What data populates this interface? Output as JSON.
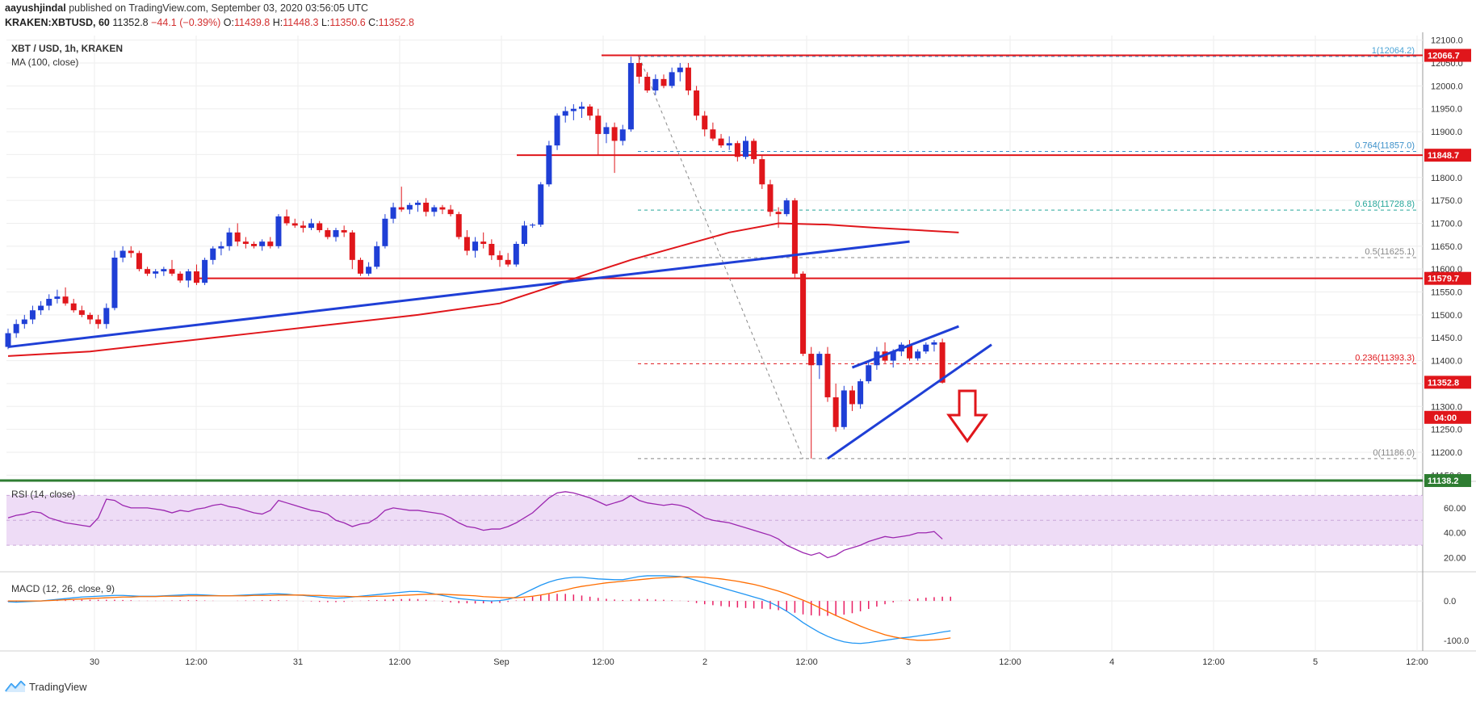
{
  "header": {
    "author": "aayushjindal",
    "published": "published on TradingView.com, September 03, 2020 03:56:05 UTC",
    "symbol": "KRAKEN:XBTUSD, 60",
    "price": "11352.8",
    "change": "−44.1 (−0.39%)",
    "o_label": "O:",
    "o_val": "11439.8",
    "h_label": "H:",
    "h_val": "11448.3",
    "l_label": "L:",
    "l_val": "11350.6",
    "c_label": "C:",
    "c_val": "11352.8"
  },
  "pane_labels": {
    "main": "XBT / USD, 1h, KRAKEN",
    "ma": "MA (100, close)",
    "rsi": "RSI (14, close)",
    "macd": "MACD (12, 26, close, 9)"
  },
  "brand": "TradingView",
  "colors": {
    "up": "#1f3fd6",
    "down": "#e0161b",
    "ma": "#e0161b",
    "trend": "#1f3fd6",
    "rsi": "#9c27b0",
    "rsi_band": "#eedcf6",
    "macd": "#2196f3",
    "signal": "#ff6d00",
    "hist": "#e91e63",
    "support_green": "#2e7d32"
  },
  "chart_data": {
    "type": "candlestick",
    "symbol": "XBT / USD",
    "interval": "1h",
    "exchange": "KRAKEN",
    "ylim": [
      11140,
      12110
    ],
    "y_ticks": [
      "12100.0",
      "12050.0",
      "12000.0",
      "11950.0",
      "11900.0",
      "11850.0",
      "11800.0",
      "11750.0",
      "11700.0",
      "11650.0",
      "11600.0",
      "11550.0",
      "11500.0",
      "11450.0",
      "11400.0",
      "11350.0",
      "11300.0",
      "11250.0",
      "11200.0",
      "11150.0"
    ],
    "x_ticks": [
      "30",
      "12:00",
      "31",
      "12:00",
      "Sep",
      "12:00",
      "2",
      "12:00",
      "3",
      "12:00",
      "4",
      "12:00",
      "5",
      "12:00"
    ],
    "candles": [
      [
        11430,
        11470,
        11425,
        11460
      ],
      [
        11460,
        11490,
        11450,
        11480
      ],
      [
        11480,
        11500,
        11470,
        11490
      ],
      [
        11490,
        11520,
        11480,
        11510
      ],
      [
        11510,
        11530,
        11500,
        11520
      ],
      [
        11520,
        11545,
        11510,
        11535
      ],
      [
        11535,
        11555,
        11525,
        11540
      ],
      [
        11540,
        11560,
        11520,
        11525
      ],
      [
        11525,
        11535,
        11505,
        11510
      ],
      [
        11510,
        11520,
        11495,
        11500
      ],
      [
        11500,
        11505,
        11480,
        11490
      ],
      [
        11490,
        11500,
        11470,
        11480
      ],
      [
        11480,
        11525,
        11470,
        11515
      ],
      [
        11515,
        11640,
        11510,
        11625
      ],
      [
        11625,
        11650,
        11615,
        11640
      ],
      [
        11640,
        11650,
        11625,
        11635
      ],
      [
        11635,
        11640,
        11595,
        11600
      ],
      [
        11600,
        11605,
        11585,
        11590
      ],
      [
        11590,
        11600,
        11580,
        11595
      ],
      [
        11595,
        11605,
        11585,
        11600
      ],
      [
        11600,
        11620,
        11585,
        11590
      ],
      [
        11590,
        11595,
        11570,
        11575
      ],
      [
        11575,
        11600,
        11560,
        11595
      ],
      [
        11595,
        11610,
        11565,
        11570
      ],
      [
        11570,
        11625,
        11565,
        11620
      ],
      [
        11620,
        11650,
        11610,
        11645
      ],
      [
        11645,
        11660,
        11630,
        11650
      ],
      [
        11650,
        11690,
        11640,
        11680
      ],
      [
        11680,
        11700,
        11650,
        11660
      ],
      [
        11660,
        11670,
        11645,
        11655
      ],
      [
        11655,
        11660,
        11645,
        11650
      ],
      [
        11650,
        11665,
        11640,
        11660
      ],
      [
        11660,
        11670,
        11645,
        11650
      ],
      [
        11650,
        11720,
        11645,
        11715
      ],
      [
        11715,
        11730,
        11695,
        11700
      ],
      [
        11700,
        11710,
        11690,
        11695
      ],
      [
        11695,
        11705,
        11680,
        11690
      ],
      [
        11690,
        11710,
        11685,
        11700
      ],
      [
        11700,
        11705,
        11680,
        11685
      ],
      [
        11685,
        11690,
        11665,
        11670
      ],
      [
        11670,
        11690,
        11660,
        11685
      ],
      [
        11685,
        11695,
        11670,
        11680
      ],
      [
        11680,
        11685,
        11600,
        11620
      ],
      [
        11620,
        11625,
        11585,
        11590
      ],
      [
        11590,
        11615,
        11585,
        11605
      ],
      [
        11605,
        11660,
        11600,
        11650
      ],
      [
        11650,
        11720,
        11645,
        11710
      ],
      [
        11710,
        11745,
        11700,
        11735
      ],
      [
        11735,
        11780,
        11725,
        11730
      ],
      [
        11730,
        11745,
        11720,
        11740
      ],
      [
        11740,
        11750,
        11725,
        11745
      ],
      [
        11745,
        11755,
        11715,
        11725
      ],
      [
        11725,
        11740,
        11715,
        11735
      ],
      [
        11735,
        11740,
        11720,
        11730
      ],
      [
        11730,
        11740,
        11715,
        11720
      ],
      [
        11720,
        11725,
        11665,
        11670
      ],
      [
        11670,
        11685,
        11630,
        11640
      ],
      [
        11640,
        11670,
        11625,
        11660
      ],
      [
        11660,
        11680,
        11645,
        11655
      ],
      [
        11655,
        11665,
        11620,
        11630
      ],
      [
        11630,
        11640,
        11605,
        11620
      ],
      [
        11620,
        11635,
        11605,
        11610
      ],
      [
        11610,
        11660,
        11605,
        11655
      ],
      [
        11655,
        11705,
        11650,
        11695
      ],
      [
        11695,
        11700,
        11690,
        11697
      ],
      [
        11697,
        11790,
        11692,
        11785
      ],
      [
        11785,
        11880,
        11780,
        11870
      ],
      [
        11870,
        11940,
        11860,
        11935
      ],
      [
        11935,
        11955,
        11920,
        11945
      ],
      [
        11945,
        11960,
        11925,
        11950
      ],
      [
        11950,
        11965,
        11930,
        11955
      ],
      [
        11955,
        11960,
        11925,
        11935
      ],
      [
        11935,
        11950,
        11850,
        11895
      ],
      [
        11895,
        11920,
        11875,
        11910
      ],
      [
        11910,
        11920,
        11810,
        11880
      ],
      [
        11880,
        11915,
        11870,
        11905
      ],
      [
        11905,
        12064,
        11900,
        12050
      ],
      [
        12050,
        12064,
        12005,
        12020
      ],
      [
        12020,
        12030,
        11985,
        11990
      ],
      [
        11990,
        12025,
        11980,
        12015
      ],
      [
        12015,
        12025,
        11995,
        12000
      ],
      [
        12000,
        12040,
        11995,
        12030
      ],
      [
        12030,
        12050,
        12010,
        12040
      ],
      [
        12040,
        12050,
        11980,
        11990
      ],
      [
        11990,
        12000,
        11925,
        11935
      ],
      [
        11935,
        11945,
        11890,
        11905
      ],
      [
        11905,
        11920,
        11880,
        11885
      ],
      [
        11885,
        11895,
        11865,
        11870
      ],
      [
        11870,
        11890,
        11860,
        11875
      ],
      [
        11875,
        11880,
        11835,
        11845
      ],
      [
        11845,
        11890,
        11840,
        11880
      ],
      [
        11880,
        11885,
        11830,
        11840
      ],
      [
        11840,
        11850,
        11775,
        11785
      ],
      [
        11785,
        11795,
        11715,
        11725
      ],
      [
        11725,
        11735,
        11690,
        11720
      ],
      [
        11720,
        11755,
        11715,
        11750
      ],
      [
        11750,
        11755,
        11580,
        11590
      ],
      [
        11590,
        11595,
        11410,
        11415
      ],
      [
        11415,
        11430,
        11186,
        11390
      ],
      [
        11390,
        11420,
        11360,
        11415
      ],
      [
        11415,
        11430,
        11310,
        11320
      ],
      [
        11320,
        11350,
        11245,
        11255
      ],
      [
        11255,
        11345,
        11250,
        11335
      ],
      [
        11335,
        11345,
        11290,
        11305
      ],
      [
        11305,
        11360,
        11295,
        11355
      ],
      [
        11355,
        11400,
        11350,
        11390
      ],
      [
        11390,
        11430,
        11380,
        11420
      ],
      [
        11420,
        11440,
        11395,
        11400
      ],
      [
        11400,
        11425,
        11385,
        11420
      ],
      [
        11420,
        11440,
        11410,
        11435
      ],
      [
        11435,
        11445,
        11400,
        11405
      ],
      [
        11405,
        11425,
        11400,
        11420
      ],
      [
        11420,
        11440,
        11415,
        11435
      ],
      [
        11435,
        11445,
        11420,
        11440
      ],
      [
        11440,
        11448,
        11350,
        11352
      ]
    ],
    "ma100": [
      [
        0,
        11410
      ],
      [
        10,
        11420
      ],
      [
        20,
        11440
      ],
      [
        30,
        11460
      ],
      [
        40,
        11480
      ],
      [
        50,
        11500
      ],
      [
        60,
        11525
      ],
      [
        66,
        11560
      ],
      [
        70,
        11585
      ],
      [
        76,
        11620
      ],
      [
        82,
        11650
      ],
      [
        88,
        11680
      ],
      [
        94,
        11700
      ],
      [
        100,
        11697
      ],
      [
        106,
        11690
      ],
      [
        116,
        11680
      ]
    ],
    "horizontal_levels": [
      {
        "value": 12066.7,
        "label": "12066.7"
      },
      {
        "value": 11848.7,
        "label": "11848.7"
      },
      {
        "value": 11579.7,
        "label": "11579.7"
      },
      {
        "value": 11138.2,
        "label": "11138.2"
      }
    ],
    "fib_levels": [
      {
        "ratio": "1",
        "value": 12064.2,
        "label": "1(12064.2)"
      },
      {
        "ratio": "0.764",
        "value": 11857.0,
        "label": "0.764(11857.0)"
      },
      {
        "ratio": "0.618",
        "value": 11728.8,
        "label": "0.618(11728.8)"
      },
      {
        "ratio": "0.5",
        "value": 11625.1,
        "label": "0.5(11625.1)"
      },
      {
        "ratio": "0.236",
        "value": 11393.3,
        "label": "0.236(11393.3)"
      },
      {
        "ratio": "0",
        "value": 11186.0,
        "label": "0(11186.0)"
      }
    ],
    "price_tags": [
      {
        "value": 11352.8,
        "label": "11352.8"
      },
      {
        "value": 11315,
        "label": "04:00"
      }
    ],
    "trendlines": [
      {
        "from": [
          0,
          11430
        ],
        "to": [
          110,
          11660
        ]
      },
      {
        "from": [
          100,
          11186
        ],
        "to": [
          120,
          11435
        ]
      },
      {
        "from": [
          103,
          11385
        ],
        "to": [
          116,
          11475
        ]
      }
    ],
    "rsi": {
      "ylim": [
        10,
        80
      ],
      "ticks": [
        "60.00",
        "40.00",
        "20.00"
      ],
      "band": [
        30,
        70
      ],
      "values": [
        52,
        54,
        55,
        57,
        56,
        52,
        50,
        48,
        47,
        46,
        45,
        52,
        67,
        66,
        62,
        60,
        60,
        60,
        59,
        58,
        56,
        58,
        57,
        59,
        60,
        62,
        63,
        61,
        60,
        58,
        56,
        55,
        58,
        66,
        64,
        62,
        60,
        58,
        57,
        55,
        50,
        48,
        45,
        47,
        48,
        52,
        58,
        60,
        59,
        58,
        58,
        57,
        56,
        55,
        52,
        48,
        45,
        44,
        42,
        43,
        43,
        45,
        48,
        52,
        56,
        62,
        68,
        72,
        73,
        72,
        70,
        68,
        65,
        62,
        64,
        66,
        70,
        66,
        64,
        63,
        62,
        63,
        62,
        60,
        56,
        52,
        50,
        49,
        48,
        46,
        44,
        42,
        40,
        38,
        35,
        30,
        27,
        24,
        22,
        24,
        20,
        22,
        26,
        28,
        30,
        33,
        35,
        37,
        36,
        37,
        38,
        40,
        40,
        41,
        35
      ]
    },
    "macd": {
      "ylim": [
        -125,
        70
      ],
      "ticks": [
        "0.0",
        "-100.0"
      ],
      "macd": [
        -2,
        -3,
        -2,
        -1,
        0,
        2,
        4,
        6,
        8,
        10,
        11,
        12,
        13,
        14,
        14,
        13,
        12,
        12,
        12,
        13,
        14,
        15,
        16,
        16,
        15,
        14,
        13,
        13,
        14,
        15,
        16,
        17,
        18,
        18,
        17,
        15,
        14,
        12,
        10,
        8,
        7,
        8,
        10,
        12,
        14,
        16,
        18,
        20,
        22,
        24,
        24,
        22,
        18,
        14,
        10,
        6,
        4,
        2,
        1,
        0,
        1,
        4,
        10,
        20,
        30,
        40,
        48,
        54,
        58,
        60,
        60,
        58,
        56,
        55,
        54,
        54,
        58,
        62,
        64,
        64,
        64,
        63,
        62,
        58,
        52,
        46,
        40,
        34,
        28,
        22,
        16,
        10,
        4,
        -4,
        -14,
        -26,
        -40,
        -55,
        -68,
        -80,
        -90,
        -98,
        -104,
        -107,
        -108,
        -106,
        -103,
        -100,
        -97,
        -94,
        -92,
        -89,
        -86,
        -83,
        -79,
        -76
      ],
      "signal": [
        0,
        0,
        0,
        0,
        0,
        1,
        2,
        3,
        4,
        5,
        6,
        7,
        8,
        9,
        10,
        10,
        11,
        11,
        11,
        12,
        12,
        12,
        13,
        13,
        13,
        13,
        13,
        13,
        13,
        13,
        14,
        14,
        14,
        15,
        15,
        15,
        15,
        14,
        14,
        13,
        12,
        12,
        11,
        11,
        11,
        12,
        12,
        13,
        14,
        15,
        16,
        17,
        17,
        17,
        16,
        15,
        14,
        13,
        11,
        10,
        9,
        8,
        8,
        10,
        12,
        15,
        19,
        24,
        28,
        33,
        37,
        40,
        43,
        46,
        48,
        50,
        52,
        54,
        56,
        58,
        59,
        60,
        61,
        61,
        61,
        60,
        58,
        56,
        53,
        50,
        46,
        42,
        37,
        31,
        25,
        18,
        10,
        2,
        -7,
        -17,
        -27,
        -37,
        -46,
        -55,
        -64,
        -72,
        -79,
        -86,
        -91,
        -95,
        -98,
        -100,
        -100,
        -99,
        -97,
        -94
      ]
    }
  }
}
